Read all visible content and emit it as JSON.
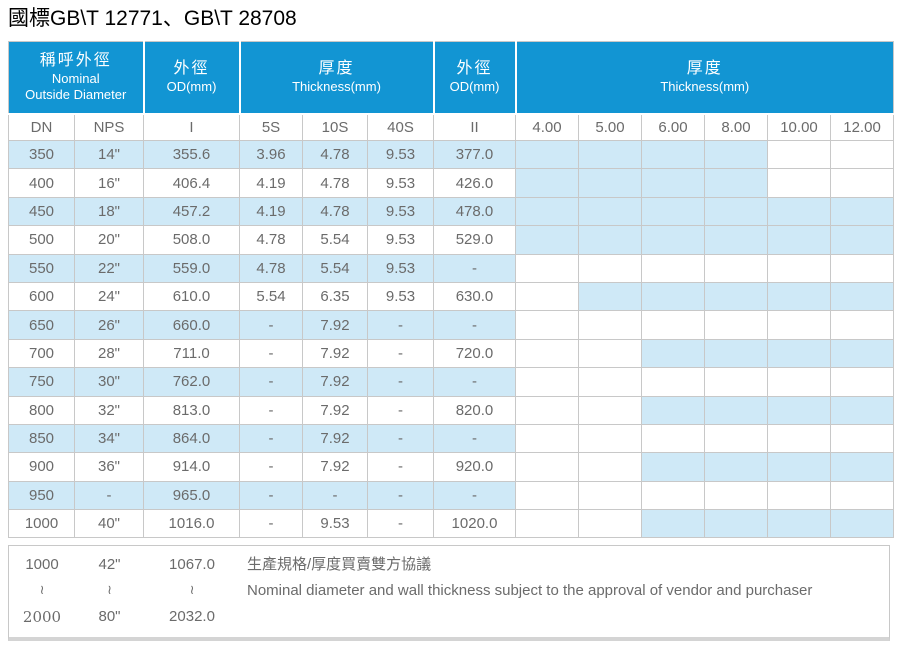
{
  "title": "國標GB\\T 12771、GB\\T 28708",
  "header": {
    "groups": [
      {
        "zh": "稱呼外徑",
        "en": "Nominal\nOutside Diameter"
      },
      {
        "zh": "外徑",
        "en": "OD(mm)"
      },
      {
        "zh": "厚度",
        "en": "Thickness(mm)"
      },
      {
        "zh": "外徑",
        "en": "OD(mm)"
      },
      {
        "zh": "厚度",
        "en": "Thickness(mm)"
      }
    ],
    "columns": [
      "DN",
      "NPS",
      "I",
      "5S",
      "10S",
      "40S",
      "II",
      "4.00",
      "5.00",
      "6.00",
      "8.00",
      "10.00",
      "12.00"
    ]
  },
  "colors": {
    "header_blue": "#1295d3",
    "row_light_blue": "#cfe9f7",
    "grid_gray": "#c8c8c8",
    "text_gray": "#6b6b6b"
  },
  "rows": [
    {
      "dn": "350",
      "nps": "14\"",
      "od1": "355.6",
      "s5": "3.96",
      "s10": "4.78",
      "s40": "9.53",
      "od2": "377.0",
      "av": [
        "1",
        "1",
        "1",
        "1",
        "0",
        "0"
      ]
    },
    {
      "dn": "400",
      "nps": "16\"",
      "od1": "406.4",
      "s5": "4.19",
      "s10": "4.78",
      "s40": "9.53",
      "od2": "426.0",
      "av": [
        "1",
        "1",
        "1",
        "1",
        "0",
        "0"
      ]
    },
    {
      "dn": "450",
      "nps": "18\"",
      "od1": "457.2",
      "s5": "4.19",
      "s10": "4.78",
      "s40": "9.53",
      "od2": "478.0",
      "av": [
        "1",
        "1",
        "1",
        "1",
        "1",
        "1"
      ]
    },
    {
      "dn": "500",
      "nps": "20\"",
      "od1": "508.0",
      "s5": "4.78",
      "s10": "5.54",
      "s40": "9.53",
      "od2": "529.0",
      "av": [
        "1",
        "1",
        "1",
        "1",
        "1",
        "1"
      ]
    },
    {
      "dn": "550",
      "nps": "22\"",
      "od1": "559.0",
      "s5": "4.78",
      "s10": "5.54",
      "s40": "9.53",
      "od2": "-",
      "av": [
        "0",
        "0",
        "0",
        "0",
        "0",
        "0"
      ]
    },
    {
      "dn": "600",
      "nps": "24\"",
      "od1": "610.0",
      "s5": "5.54",
      "s10": "6.35",
      "s40": "9.53",
      "od2": "630.0",
      "av": [
        "0",
        "1",
        "1",
        "1",
        "1",
        "1"
      ]
    },
    {
      "dn": "650",
      "nps": "26\"",
      "od1": "660.0",
      "s5": "-",
      "s10": "7.92",
      "s40": "-",
      "od2": "-",
      "av": [
        "0",
        "0",
        "0",
        "0",
        "0",
        "0"
      ]
    },
    {
      "dn": "700",
      "nps": "28\"",
      "od1": "711.0",
      "s5": "-",
      "s10": "7.92",
      "s40": "-",
      "od2": "720.0",
      "av": [
        "0",
        "0",
        "1",
        "1",
        "1",
        "1"
      ]
    },
    {
      "dn": "750",
      "nps": "30\"",
      "od1": "762.0",
      "s5": "-",
      "s10": "7.92",
      "s40": "-",
      "od2": "-",
      "av": [
        "0",
        "0",
        "0",
        "0",
        "0",
        "0"
      ]
    },
    {
      "dn": "800",
      "nps": "32\"",
      "od1": "813.0",
      "s5": "-",
      "s10": "7.92",
      "s40": "-",
      "od2": "820.0",
      "av": [
        "0",
        "0",
        "1",
        "1",
        "1",
        "1"
      ]
    },
    {
      "dn": "850",
      "nps": "34\"",
      "od1": "864.0",
      "s5": "-",
      "s10": "7.92",
      "s40": "-",
      "od2": "-",
      "av": [
        "0",
        "0",
        "0",
        "0",
        "0",
        "0"
      ]
    },
    {
      "dn": "900",
      "nps": "36\"",
      "od1": "914.0",
      "s5": "-",
      "s10": "7.92",
      "s40": "-",
      "od2": "920.0",
      "av": [
        "0",
        "0",
        "1",
        "1",
        "1",
        "1"
      ]
    },
    {
      "dn": "950",
      "nps": "-",
      "od1": "965.0",
      "s5": "-",
      "s10": "-",
      "s40": "-",
      "od2": "-",
      "av": [
        "0",
        "0",
        "0",
        "0",
        "0",
        "0"
      ]
    },
    {
      "dn": "1000",
      "nps": "40\"",
      "od1": "1016.0",
      "s5": "-",
      "s10": "9.53",
      "s40": "-",
      "od2": "1020.0",
      "av": [
        "0",
        "0",
        "1",
        "1",
        "1",
        "1"
      ]
    }
  ],
  "footnote": {
    "dn": {
      "from": "1000",
      "tilde": "≀",
      "to": "2000"
    },
    "nps": {
      "from": "42\"",
      "tilde": "≀",
      "to": "80\""
    },
    "od": {
      "from": "1067.0",
      "tilde": "≀",
      "to": "2032.0"
    },
    "note_zh": "生產規格/厚度買賣雙方協議",
    "note_en": "Nominal diameter and wall thickness subject to the approval of vendor and purchaser"
  }
}
